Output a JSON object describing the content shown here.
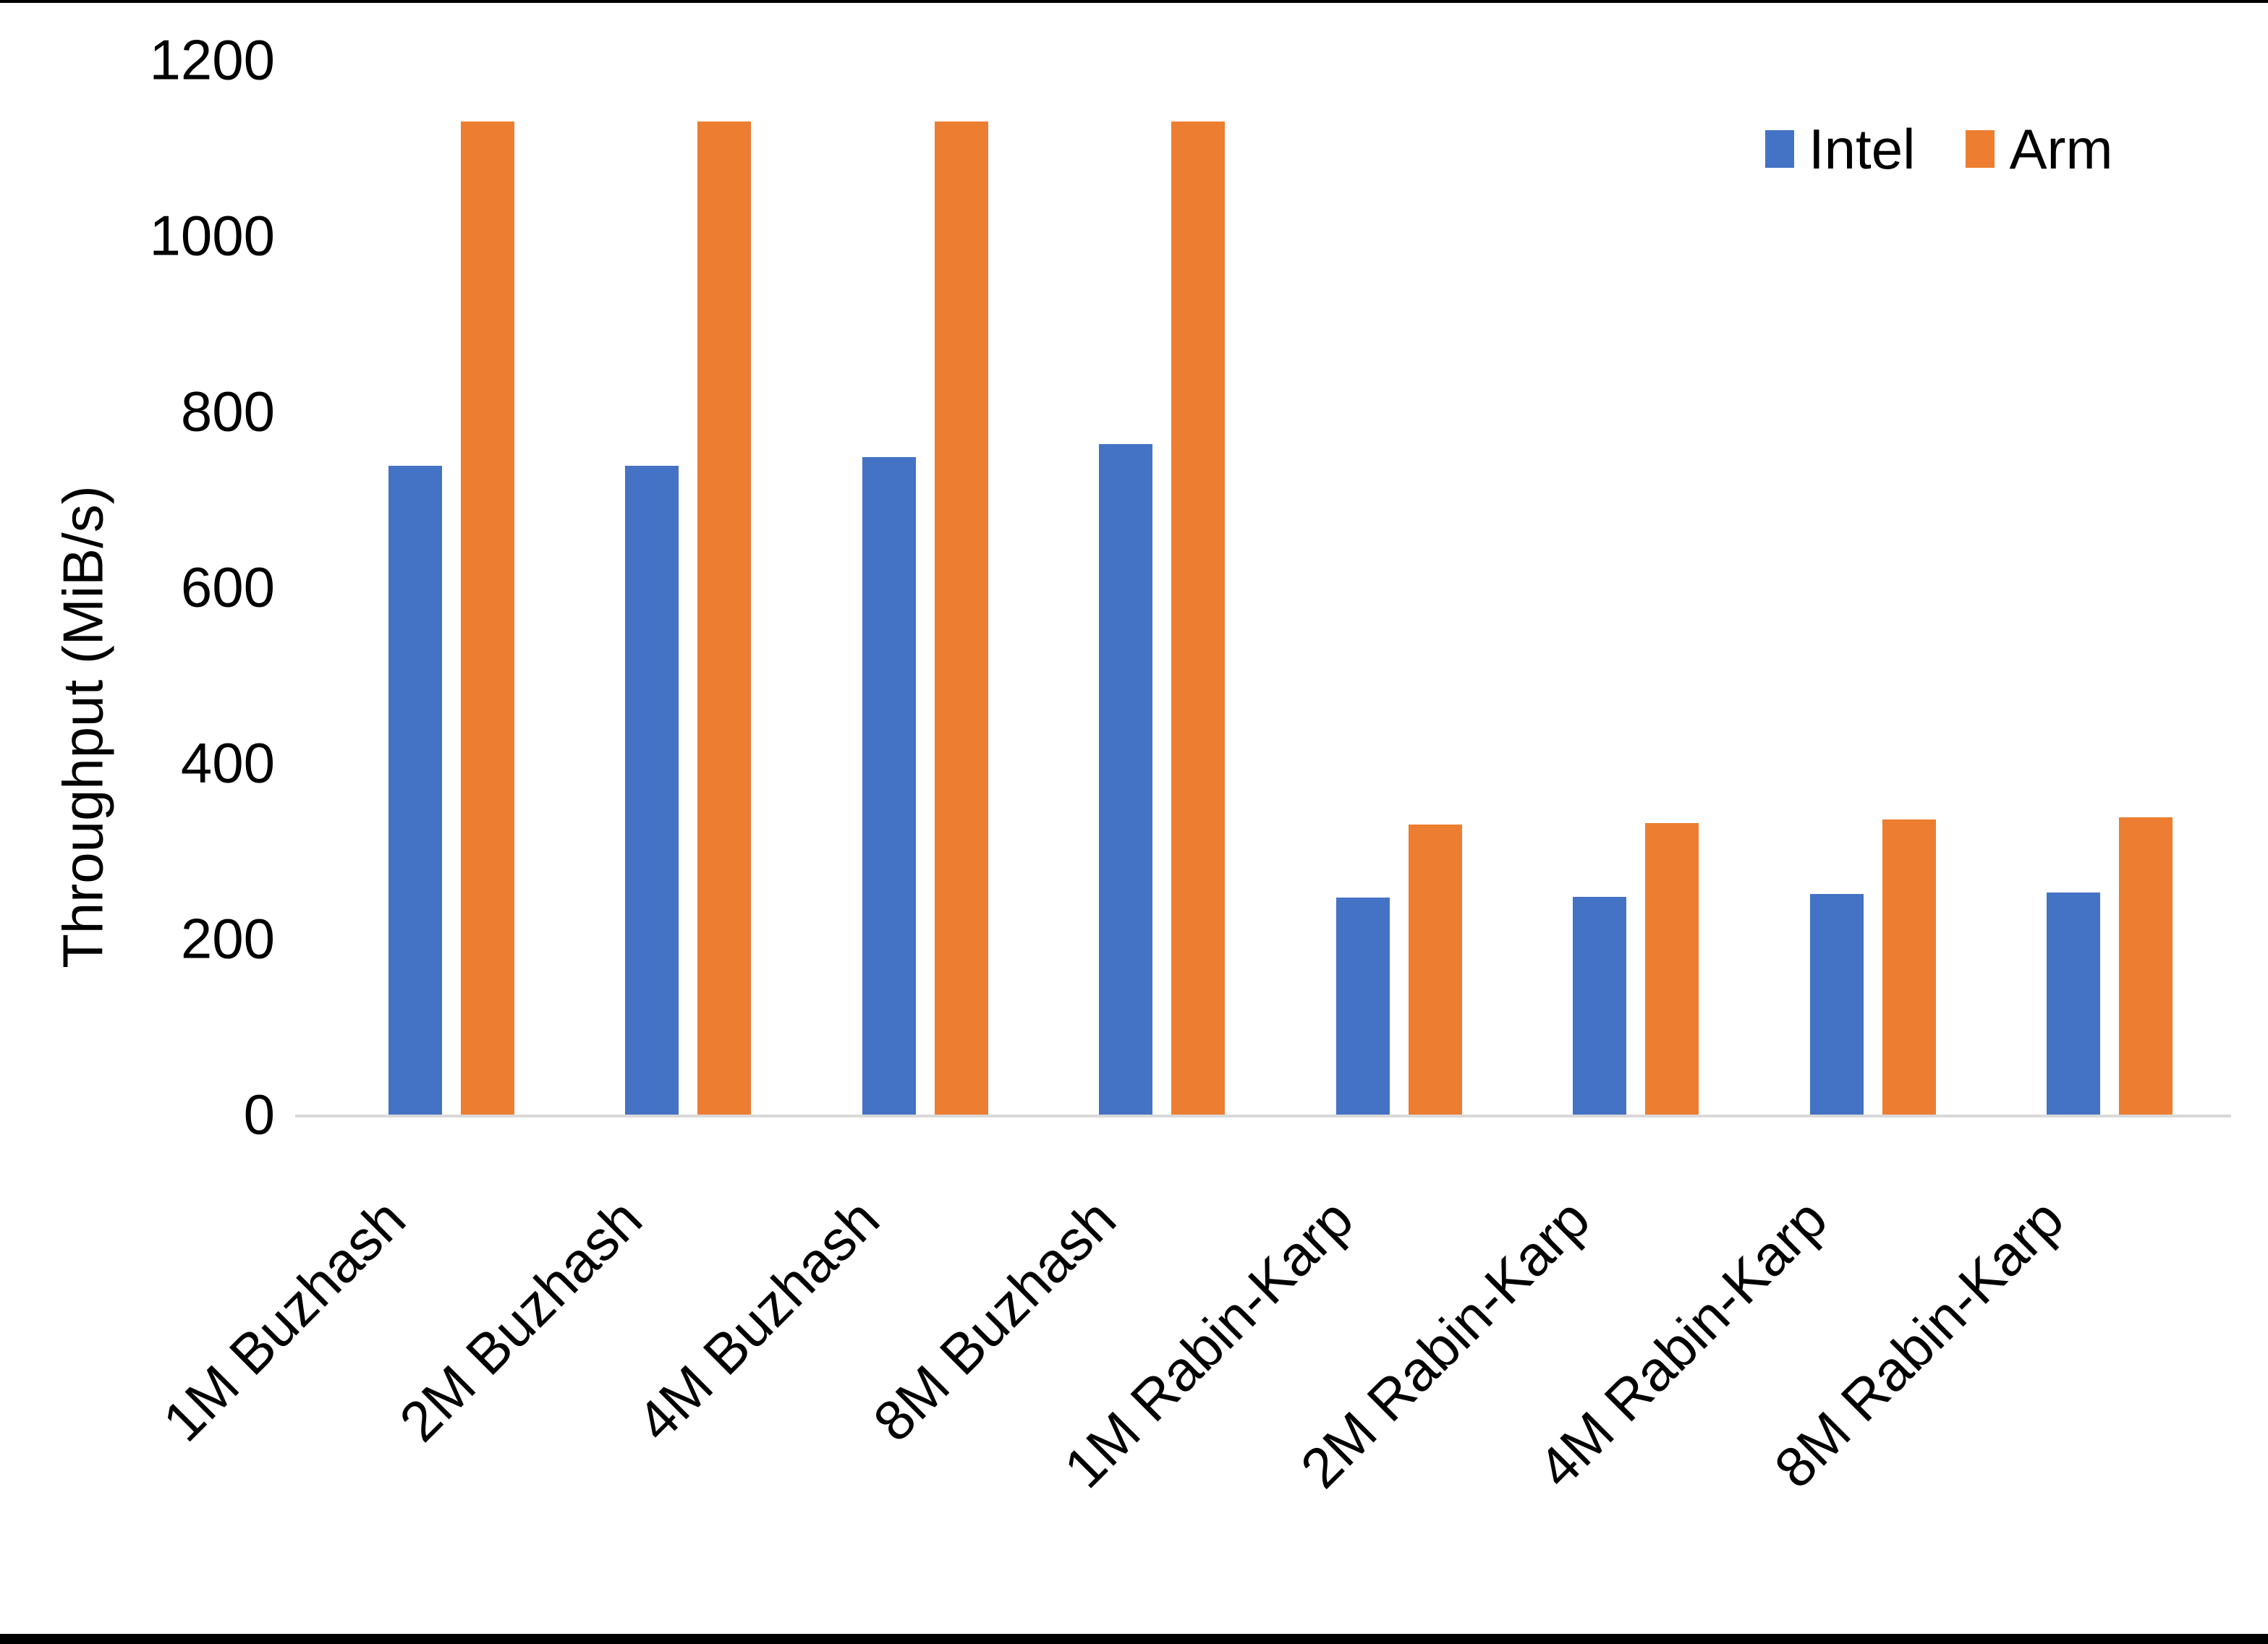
{
  "chart_data": {
    "type": "bar",
    "title": "",
    "xlabel": "",
    "ylabel": "Throughput (MiB/s)",
    "categories": [
      "1M Buzhash",
      "2M Buzhash",
      "4M Buzhash",
      "8M Buzhash",
      "1M Rabin-Karp",
      "2M Rabin-Karp",
      "4M Rabin-Karp",
      "8M Rabin-Karp"
    ],
    "series": [
      {
        "name": "Intel",
        "color": "#4472C4",
        "values": [
          738,
          738,
          748,
          763,
          247,
          248,
          251,
          253
        ]
      },
      {
        "name": "Arm",
        "color": "#ED7D31",
        "values": [
          1130,
          1130,
          1130,
          1130,
          330,
          332,
          336,
          338
        ]
      }
    ],
    "y_ticks": [
      0,
      200,
      400,
      600,
      800,
      1000,
      1200
    ],
    "ylim": [
      0,
      1200
    ],
    "grid": false,
    "legend_position": "top-right",
    "axis_line_color": "#d9d9d9",
    "text_color": "#000000",
    "background_color": "#ffffff"
  }
}
